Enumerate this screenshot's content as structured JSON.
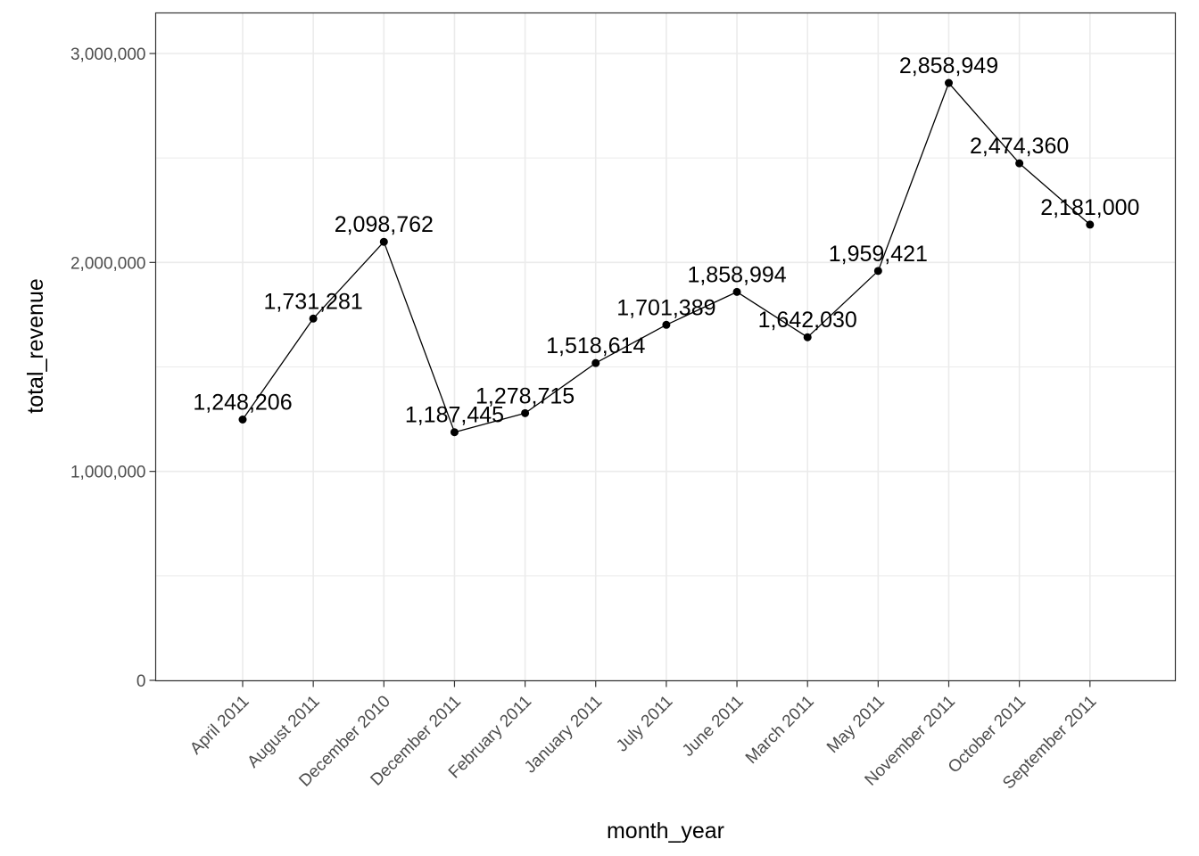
{
  "chart_data": {
    "type": "line",
    "xlabel": "month_year",
    "ylabel": "total_revenue",
    "categories": [
      "April 2011",
      "August 2011",
      "December 2010",
      "December 2011",
      "February 2011",
      "January 2011",
      "July 2011",
      "June 2011",
      "March 2011",
      "May 2011",
      "November 2011",
      "October 2011",
      "September 2011"
    ],
    "values": [
      1248206,
      1731281,
      2098762,
      1187445,
      1278715,
      1518614,
      1701389,
      1858994,
      1642030,
      1959421,
      2858949,
      2474360,
      2181000
    ],
    "data_labels": [
      "1,248,206",
      "1,731,281",
      "2,098,762",
      "1,187,445",
      "1,278,715",
      "1,518,614",
      "1,701,389",
      "1,858,994",
      "1,642,030",
      "1,959,421",
      "2,858,949",
      "2,474,360",
      "2,181,000"
    ],
    "y_ticks": [
      0,
      1000000,
      2000000,
      3000000
    ],
    "y_tick_labels": [
      "0",
      "1,000,000",
      "2,000,000",
      "3,000,000"
    ],
    "ylim": [
      0,
      3200000
    ],
    "grid": true,
    "legend": "none",
    "colors": {
      "line": "#000000",
      "point": "#000000",
      "grid": "#ebebeb",
      "panel_border": "#333333",
      "tick_text": "#4d4d4d"
    }
  }
}
